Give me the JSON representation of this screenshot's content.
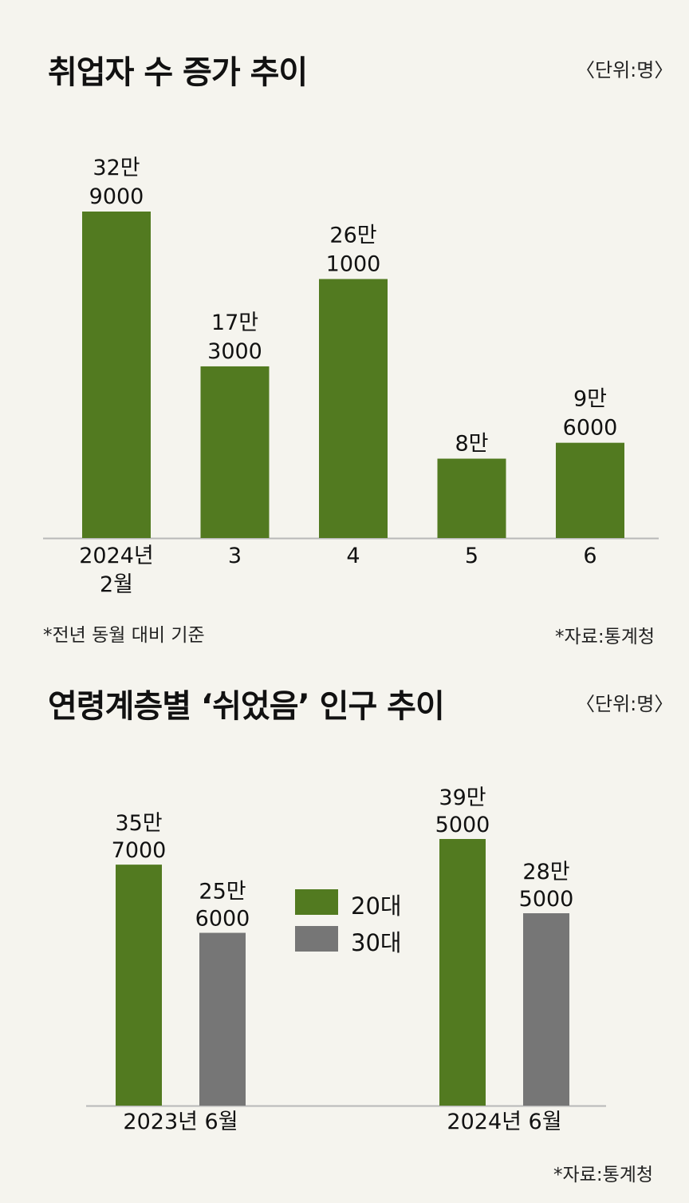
{
  "colors": {
    "green": "#527a20",
    "gray": "#767676",
    "axis": "#b8b8b8"
  },
  "chart_data": [
    {
      "type": "bar",
      "title": "취업자 수 증가 추이",
      "unit_label": "〈단위:명〉",
      "categories": [
        [
          "2024년",
          "2월"
        ],
        [
          "3"
        ],
        [
          "4"
        ],
        [
          "5"
        ],
        [
          "6"
        ]
      ],
      "values": [
        329000,
        173000,
        261000,
        80000,
        96000
      ],
      "value_labels": [
        [
          "32만",
          "9000"
        ],
        [
          "17만",
          "3000"
        ],
        [
          "26만",
          "1000"
        ],
        [
          "8만"
        ],
        [
          "9만",
          "6000"
        ]
      ],
      "ylim": [
        0,
        329000
      ],
      "grid": false,
      "footnote": "*전년 동월 대비 기준",
      "source": "*자료:통계청"
    },
    {
      "type": "bar",
      "title": "연령계층별 ‘쉬었음’ 인구 추이",
      "unit_label": "〈단위:명〉",
      "categories": [
        "2023년 6월",
        "2024년 6월"
      ],
      "series": [
        {
          "name": "20대",
          "color": "green",
          "values": [
            357000,
            395000
          ],
          "value_labels": [
            [
              "35만",
              "7000"
            ],
            [
              "39만",
              "5000"
            ]
          ]
        },
        {
          "name": "30대",
          "color": "gray",
          "values": [
            256000,
            285000
          ],
          "value_labels": [
            [
              "25만",
              "6000"
            ],
            [
              "28만",
              "5000"
            ]
          ]
        }
      ],
      "ylim": [
        0,
        395000
      ],
      "legend": "center",
      "grid": false,
      "source": "*자료:통계청"
    }
  ]
}
